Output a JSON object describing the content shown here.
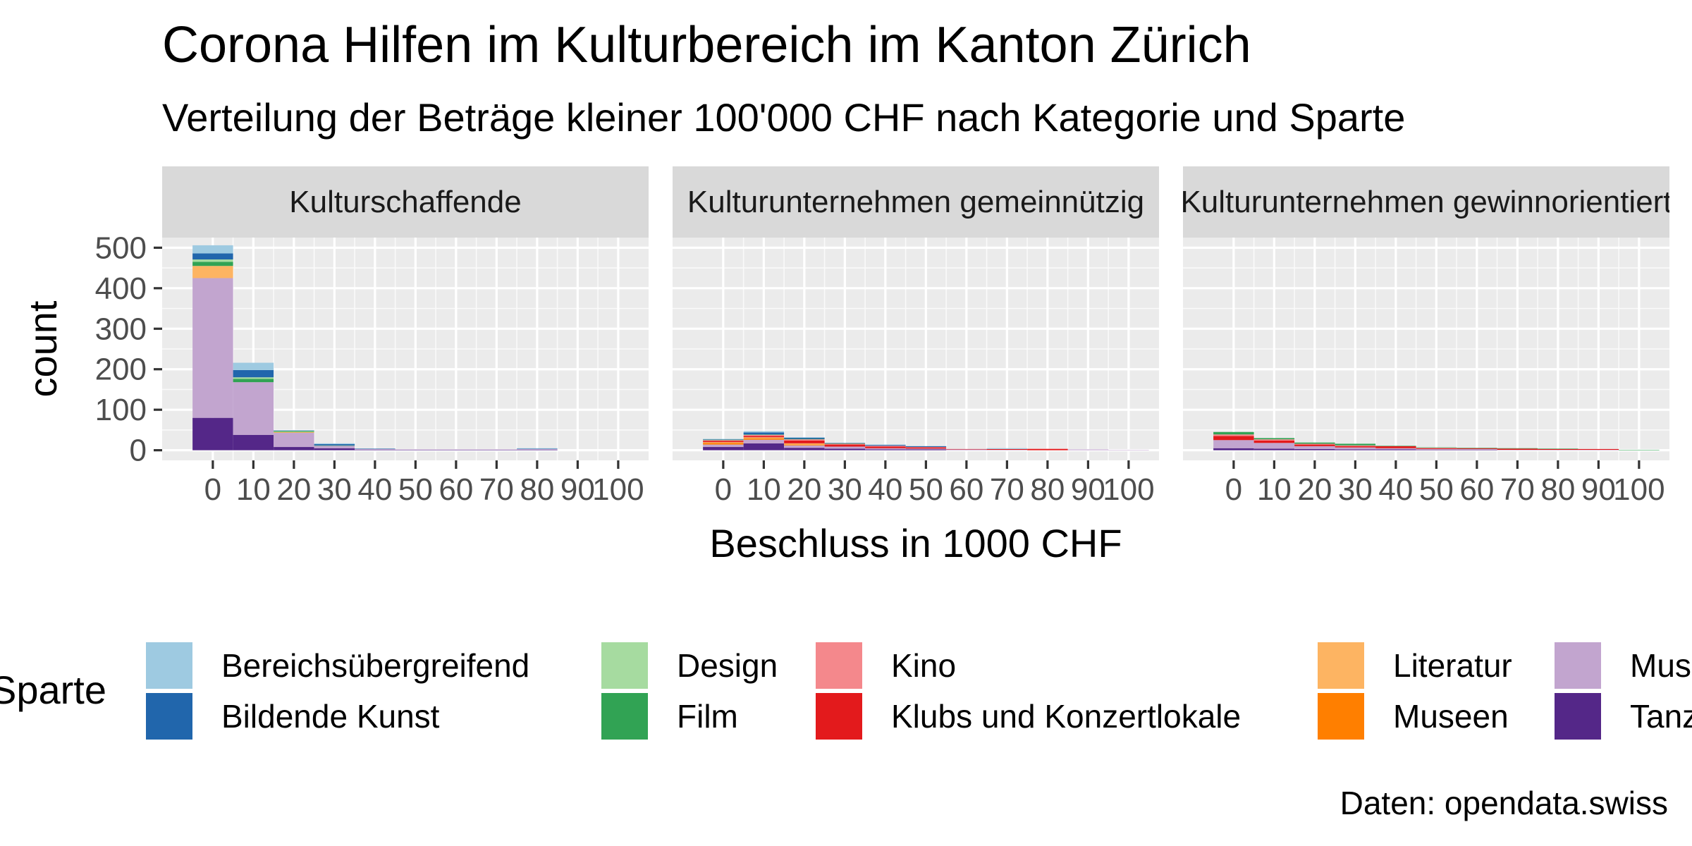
{
  "chart_data": {
    "type": "bar",
    "title": "Corona Hilfen im Kulturbereich im Kanton Zürich",
    "subtitle": "Verteilung der Beträge kleiner 100'000 CHF nach Kategorie und Sparte",
    "xlabel": "Beschluss in 1000 CHF",
    "ylabel": "count",
    "caption": "Daten: opendata.swiss",
    "legend_title": "Sparte",
    "legend_position": "bottom",
    "grid": true,
    "xlim": [
      -12.5,
      107.5
    ],
    "ylim": [
      -25,
      525
    ],
    "x_ticks": [
      0,
      10,
      20,
      30,
      40,
      50,
      60,
      70,
      80,
      90,
      100
    ],
    "y_ticks": [
      0,
      100,
      200,
      300,
      400,
      500
    ],
    "bin_centers": [
      0,
      10,
      20,
      30,
      40,
      50,
      60,
      70,
      80,
      90,
      100
    ],
    "legend_colors": {
      "Bereichsübergreifend": "#9ECAE1",
      "Bildende Kunst": "#2166AC",
      "Design": "#A6DBA0",
      "Film": "#31A354",
      "Kino": "#F4888C",
      "Klubs und Konzertlokale": "#E31A1C",
      "Literatur": "#FDB462",
      "Museen": "#FF7F00",
      "Musik": "#C2A5CF",
      "Tanz": "#542788"
    },
    "legend_entries": [
      "Bereichsübergreifend",
      "Bildende Kunst",
      "Design",
      "Film",
      "Kino",
      "Klubs und Konzertlokale",
      "Literatur",
      "Museen",
      "Musik",
      "Tanz"
    ],
    "panels": [
      {
        "strip": "Kulturschaffende",
        "series": [
          {
            "name": "Tanz",
            "values": [
              80,
              38,
              8,
              5,
              1,
              1,
              1,
              1,
              1,
              0,
              0
            ]
          },
          {
            "name": "Musik",
            "values": [
              345,
              130,
              35,
              6,
              2,
              1,
              1,
              1,
              2,
              0,
              0
            ]
          },
          {
            "name": "Museen",
            "values": [
              0,
              0,
              0,
              0,
              0,
              0,
              0,
              0,
              0,
              0,
              0
            ]
          },
          {
            "name": "Literatur",
            "values": [
              30,
              0,
              2,
              0,
              0,
              0,
              0,
              0,
              0,
              0,
              0
            ]
          },
          {
            "name": "Klubs und Konzertlokale",
            "values": [
              0,
              0,
              0,
              0,
              0,
              0,
              0,
              0,
              0,
              0,
              0
            ]
          },
          {
            "name": "Kino",
            "values": [
              0,
              0,
              0,
              0,
              0,
              0,
              0,
              0,
              0,
              0,
              0
            ]
          },
          {
            "name": "Film",
            "values": [
              10,
              8,
              2,
              1,
              0,
              0,
              0,
              0,
              0,
              0,
              0
            ]
          },
          {
            "name": "Design",
            "values": [
              6,
              4,
              1,
              0,
              0,
              0,
              0,
              0,
              0,
              0,
              0
            ]
          },
          {
            "name": "Bildende Kunst",
            "values": [
              15,
              18,
              1,
              3,
              1,
              0,
              0,
              0,
              1,
              0,
              0
            ]
          },
          {
            "name": "Bereichsübergreifend",
            "values": [
              20,
              18,
              0,
              2,
              0,
              0,
              0,
              0,
              1,
              0,
              0
            ]
          }
        ]
      },
      {
        "strip": "Kulturunternehmen gemeinnützig",
        "series": [
          {
            "name": "Tanz",
            "values": [
              8,
              17,
              6,
              4,
              2,
              2,
              0,
              0,
              0,
              0,
              0
            ]
          },
          {
            "name": "Musik",
            "values": [
              6,
              9,
              6,
              5,
              3,
              2,
              2,
              1,
              0,
              2,
              1
            ]
          },
          {
            "name": "Museen",
            "values": [
              4,
              3,
              2,
              0,
              0,
              0,
              0,
              0,
              0,
              0,
              0
            ]
          },
          {
            "name": "Literatur",
            "values": [
              2,
              3,
              3,
              0,
              0,
              0,
              0,
              0,
              0,
              0,
              0
            ]
          },
          {
            "name": "Klubs und Konzertlokale",
            "values": [
              3,
              3,
              7,
              5,
              4,
              3,
              1,
              2,
              3,
              0,
              0
            ]
          },
          {
            "name": "Kino",
            "values": [
              2,
              3,
              3,
              2,
              2,
              1,
              0,
              0,
              1,
              0,
              0
            ]
          },
          {
            "name": "Film",
            "values": [
              1,
              1,
              1,
              1,
              0,
              0,
              0,
              0,
              0,
              0,
              0
            ]
          },
          {
            "name": "Design",
            "values": [
              0,
              0,
              0,
              0,
              0,
              0,
              0,
              0,
              0,
              0,
              0
            ]
          },
          {
            "name": "Bildende Kunst",
            "values": [
              1,
              5,
              3,
              1,
              2,
              2,
              0,
              0,
              0,
              0,
              0
            ]
          },
          {
            "name": "Bereichsübergreifend",
            "values": [
              1,
              3,
              1,
              0,
              1,
              0,
              0,
              2,
              0,
              0,
              0
            ]
          }
        ]
      },
      {
        "strip": "Kulturunternehmen gewinnorientiert",
        "series": [
          {
            "name": "Tanz",
            "values": [
              5,
              4,
              3,
              2,
              2,
              1,
              1,
              0,
              0,
              0,
              0
            ]
          },
          {
            "name": "Musik",
            "values": [
              20,
              14,
              7,
              5,
              3,
              2,
              2,
              1,
              1,
              1,
              0
            ]
          },
          {
            "name": "Museen",
            "values": [
              0,
              0,
              0,
              0,
              0,
              0,
              0,
              0,
              0,
              0,
              0
            ]
          },
          {
            "name": "Literatur",
            "values": [
              0,
              0,
              0,
              0,
              0,
              0,
              0,
              0,
              0,
              0,
              0
            ]
          },
          {
            "name": "Klubs und Konzertlokale",
            "values": [
              10,
              6,
              4,
              3,
              5,
              2,
              2,
              3,
              2,
              2,
              0
            ]
          },
          {
            "name": "Kino",
            "values": [
              4,
              3,
              2,
              2,
              0,
              1,
              0,
              0,
              0,
              0,
              0
            ]
          },
          {
            "name": "Film",
            "values": [
              6,
              3,
              3,
              4,
              1,
              1,
              1,
              1,
              1,
              0,
              1
            ]
          },
          {
            "name": "Design",
            "values": [
              0,
              0,
              0,
              0,
              0,
              0,
              0,
              0,
              0,
              0,
              0
            ]
          },
          {
            "name": "Bildende Kunst",
            "values": [
              0,
              0,
              0,
              0,
              0,
              0,
              0,
              0,
              0,
              0,
              0
            ]
          },
          {
            "name": "Bereichsübergreifend",
            "values": [
              0,
              0,
              0,
              0,
              0,
              0,
              0,
              0,
              0,
              0,
              0
            ]
          }
        ]
      }
    ]
  }
}
